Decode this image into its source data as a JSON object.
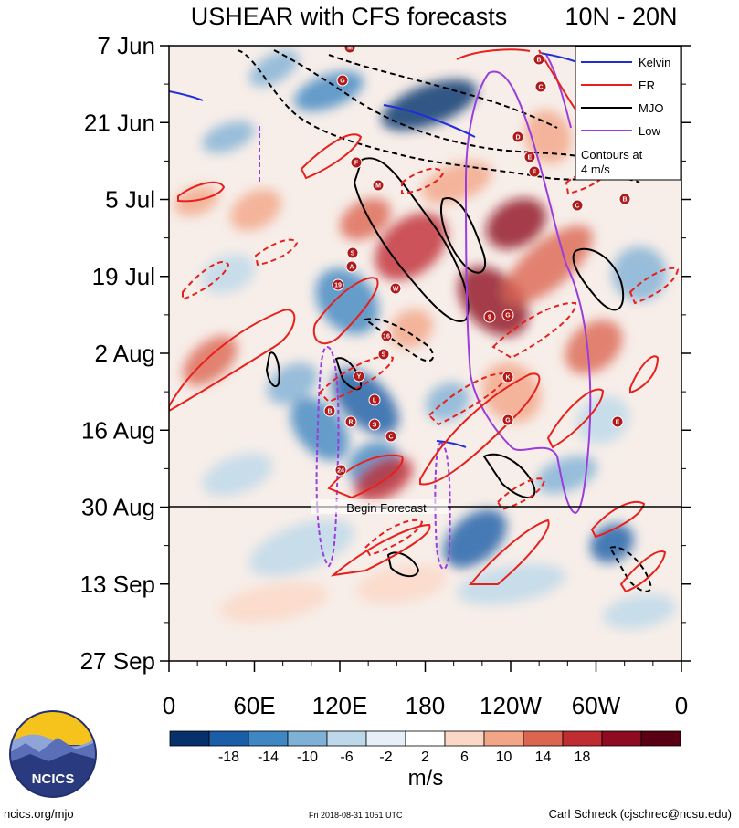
{
  "chart_data": {
    "type": "heatmap",
    "title": "USHEAR with CFS forecasts",
    "region": "10N - 20N",
    "x_ticks": [
      "0",
      "60E",
      "120E",
      "180",
      "120W",
      "60W",
      "0"
    ],
    "y_ticks": [
      "7 Jun",
      "21 Jun",
      "5 Jul",
      "19 Jul",
      "2 Aug",
      "16 Aug",
      "30 Aug",
      "13 Sep",
      "27 Sep"
    ],
    "forecast_label": "Begin Forecast",
    "forecast_start": "30 Aug",
    "legend": [
      {
        "label": "Kelvin",
        "color": "#1f2fd8"
      },
      {
        "label": "ER",
        "color": "#e8201c"
      },
      {
        "label": "MJO",
        "color": "#000000"
      },
      {
        "label": "Low",
        "color": "#9b3ddc"
      }
    ],
    "legend_note_1": "Contours at",
    "legend_note_2": "4 m/s",
    "colorbar_ticks": [
      "-18",
      "-14",
      "-10",
      "-6",
      "-2",
      "2",
      "6",
      "10",
      "14",
      "18"
    ],
    "colorbar_colors": [
      "#08306b",
      "#1c5da8",
      "#3e87c2",
      "#7fb0d6",
      "#bcd8ea",
      "#e6eff7",
      "#ffffff",
      "#fbd7c6",
      "#f3a587",
      "#dc6552",
      "#bf2d32",
      "#8e0b22",
      "#5a0015"
    ],
    "units": "m/s",
    "storm_labels": [
      "M",
      "G",
      "B",
      "C",
      "D",
      "E",
      "F",
      "C",
      "B",
      "F",
      "M",
      "S",
      "A",
      "19",
      "W",
      "9",
      "G",
      "16",
      "S",
      "Y",
      "L",
      "B",
      "R",
      "S",
      "C",
      "24",
      "K",
      "E",
      "G"
    ]
  },
  "footer": {
    "left": "ncics.org/mjo",
    "middle": "Fri 2018-08-31 1051 UTC",
    "right": "Carl Schreck (cjschrec@ncsu.edu)"
  },
  "logo": {
    "text": "NCICS"
  }
}
